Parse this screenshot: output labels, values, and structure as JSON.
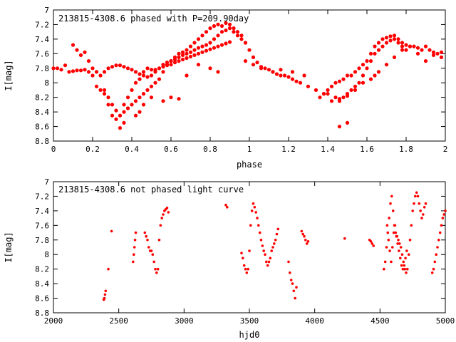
{
  "chart_data": [
    {
      "type": "scatter",
      "title": "213815-4308.6 phased with P=209.90day",
      "xlabel": "phase",
      "ylabel": "I[mag]",
      "xlim": [
        0,
        2
      ],
      "ylim": [
        8.8,
        7
      ],
      "y_inverted": true,
      "xticks": [
        0,
        0.2,
        0.4,
        0.6,
        0.8,
        1,
        1.2,
        1.4,
        1.6,
        1.8,
        2
      ],
      "yticks": [
        7,
        7.2,
        7.4,
        7.6,
        7.8,
        8,
        8.2,
        8.4,
        8.6,
        8.8
      ],
      "marker_color": "#ff0000",
      "grid": false,
      "series": [
        {
          "x": [
            0.0,
            0.02,
            0.04,
            0.06,
            0.08,
            0.1,
            0.12,
            0.14,
            0.16,
            0.18,
            0.2,
            0.22,
            0.24,
            0.26,
            0.28,
            0.3,
            0.32,
            0.34,
            0.36,
            0.38,
            0.4,
            0.42,
            0.44,
            0.46,
            0.48,
            0.5,
            0.52,
            0.54,
            0.56,
            0.58,
            0.6,
            0.62,
            0.64,
            0.66,
            0.68,
            0.7,
            0.72,
            0.74,
            0.76,
            0.78,
            0.8,
            0.82,
            0.84,
            0.86,
            0.88,
            0.9,
            0.92,
            0.94,
            0.96,
            0.98,
            1.0,
            1.02,
            1.04,
            1.06,
            1.08,
            1.1,
            1.12,
            1.14,
            1.16,
            1.18,
            1.2,
            1.22,
            1.24,
            1.26,
            1.3,
            1.34,
            1.38,
            1.4,
            1.42,
            1.44,
            1.46,
            1.48,
            1.5,
            1.52,
            1.54,
            1.56,
            1.58,
            1.6,
            1.62,
            1.64,
            1.66,
            1.68,
            1.7,
            1.72,
            1.74,
            1.76,
            1.78,
            1.8,
            1.82,
            1.84,
            1.86,
            1.88,
            1.9,
            1.92,
            1.94,
            1.96,
            1.98,
            0.1,
            0.12,
            0.14,
            0.16,
            0.18,
            0.2,
            0.22,
            0.24,
            0.26,
            0.28,
            0.3,
            0.32,
            0.34,
            0.36,
            0.38,
            0.4,
            0.42,
            0.44,
            0.46,
            0.48,
            0.5,
            0.52,
            0.54,
            0.56,
            0.58,
            0.6,
            0.62,
            0.64,
            0.66,
            0.68,
            0.7,
            0.72,
            0.74,
            0.76,
            0.78,
            0.8,
            0.82,
            0.84,
            0.86,
            0.88,
            0.9,
            0.92,
            0.94,
            0.96,
            0.98,
            1.4,
            1.44,
            1.46,
            1.48,
            1.5,
            1.52,
            1.54,
            1.56,
            1.58,
            1.6,
            1.62,
            1.64,
            1.66,
            1.68,
            1.7,
            1.72,
            1.74,
            1.76,
            1.78,
            1.8,
            0.28,
            0.3,
            0.32,
            0.34,
            0.36,
            0.38,
            0.4,
            0.42,
            0.44,
            0.46,
            0.48,
            0.5,
            0.52,
            0.54,
            0.56,
            0.58,
            0.6,
            0.62,
            0.64,
            0.66,
            0.68,
            0.7,
            0.72,
            0.74,
            0.76,
            0.78,
            0.8,
            0.82,
            0.84,
            0.86,
            0.88,
            0.9,
            1.36,
            1.38,
            1.42,
            1.46,
            1.5,
            1.54,
            1.58,
            1.62,
            1.66,
            1.7,
            1.74,
            1.78,
            1.82,
            1.86,
            1.9,
            1.94,
            1.98,
            0.26,
            0.34,
            0.36,
            0.38,
            0.42,
            0.44,
            0.46,
            0.5,
            0.56,
            0.6,
            0.64,
            0.68,
            0.74,
            0.8,
            0.84,
            0.92,
            0.98,
            1.02,
            1.06,
            1.12,
            1.16,
            1.22,
            1.28,
            1.46,
            1.5,
            1.64
          ],
          "y": [
            7.8,
            7.8,
            7.82,
            7.76,
            7.85,
            7.84,
            7.83,
            7.83,
            7.82,
            7.85,
            7.9,
            8.05,
            8.1,
            8.15,
            8.2,
            8.3,
            8.38,
            8.45,
            8.4,
            8.35,
            8.3,
            8.25,
            8.2,
            8.15,
            8.1,
            8.05,
            8.0,
            7.95,
            7.85,
            7.75,
            7.7,
            7.65,
            7.6,
            7.58,
            7.55,
            7.5,
            7.45,
            7.4,
            7.35,
            7.3,
            7.25,
            7.22,
            7.2,
            7.22,
            7.18,
            7.2,
            7.25,
            7.3,
            7.35,
            7.45,
            7.55,
            7.65,
            7.72,
            7.78,
            7.8,
            7.82,
            7.85,
            7.88,
            7.9,
            7.9,
            7.92,
            7.95,
            7.98,
            8.0,
            8.05,
            8.1,
            8.15,
            8.1,
            8.05,
            8.0,
            7.98,
            7.95,
            7.9,
            7.9,
            7.85,
            7.8,
            7.75,
            7.7,
            7.6,
            7.5,
            7.45,
            7.4,
            7.38,
            7.36,
            7.35,
            7.4,
            7.45,
            7.48,
            7.5,
            7.5,
            7.52,
            7.55,
            7.5,
            7.55,
            7.58,
            7.6,
            7.65,
            7.48,
            7.55,
            7.62,
            7.58,
            7.7,
            7.8,
            7.85,
            7.9,
            7.85,
            7.8,
            7.78,
            7.76,
            7.76,
            7.78,
            7.8,
            7.82,
            7.85,
            7.88,
            7.9,
            7.92,
            7.9,
            7.85,
            7.8,
            7.75,
            7.72,
            7.7,
            7.68,
            7.65,
            7.62,
            7.6,
            7.58,
            7.55,
            7.52,
            7.5,
            7.48,
            7.45,
            7.4,
            7.35,
            7.3,
            7.28,
            7.25,
            7.3,
            7.35,
            7.4,
            7.45,
            8.15,
            8.2,
            8.25,
            8.2,
            8.15,
            8.1,
            8.05,
            8.0,
            7.9,
            7.8,
            7.7,
            7.6,
            7.55,
            7.5,
            7.45,
            7.42,
            7.4,
            7.45,
            7.5,
            7.55,
            8.3,
            8.45,
            8.5,
            8.45,
            8.3,
            8.2,
            8.1,
            8.0,
            7.95,
            7.85,
            7.8,
            7.82,
            7.82,
            7.8,
            7.78,
            7.76,
            7.75,
            7.72,
            7.7,
            7.68,
            7.66,
            7.64,
            7.62,
            7.6,
            7.58,
            7.56,
            7.54,
            7.52,
            7.5,
            7.48,
            7.46,
            7.44,
            8.2,
            8.15,
            8.25,
            8.22,
            8.18,
            8.1,
            8.0,
            7.95,
            7.85,
            7.75,
            7.65,
            7.55,
            7.5,
            7.6,
            7.7,
            7.62,
            7.58,
            8.1,
            8.62,
            8.55,
            8.35,
            8.45,
            8.4,
            8.3,
            8.2,
            8.25,
            8.2,
            8.22,
            7.9,
            7.75,
            7.8,
            7.85,
            7.3,
            7.7,
            7.75,
            7.8,
            7.85,
            7.82,
            7.85,
            7.9,
            8.6,
            8.55,
            7.9
          ],
          "x_note": ""
        }
      ]
    },
    {
      "type": "scatter",
      "title": "213815-4308.6 not phased light curve",
      "xlabel": "hjd0",
      "ylabel": "I[mag]",
      "xlim": [
        2000,
        5000
      ],
      "ylim": [
        8.8,
        7
      ],
      "y_inverted": true,
      "xticks": [
        2000,
        2500,
        3000,
        3500,
        4000,
        4500,
        5000
      ],
      "yticks": [
        7,
        7.2,
        7.4,
        7.6,
        7.8,
        8,
        8.2,
        8.4,
        8.6,
        8.8
      ],
      "marker_color": "#ff0000",
      "grid": false,
      "series": [
        {
          "x": [
            2385,
            2390,
            2395,
            2400,
            2420,
            2445,
            2610,
            2615,
            2620,
            2625,
            2630,
            2700,
            2710,
            2720,
            2730,
            2740,
            2750,
            2760,
            2770,
            2780,
            2790,
            2800,
            2810,
            2820,
            2830,
            2840,
            2850,
            2860,
            2870,
            2880,
            3320,
            3330,
            3440,
            3450,
            3460,
            3470,
            3480,
            3490,
            3500,
            3510,
            3520,
            3530,
            3540,
            3550,
            3560,
            3570,
            3580,
            3590,
            3600,
            3610,
            3620,
            3630,
            3640,
            3650,
            3660,
            3670,
            3680,
            3690,
            3700,
            3710,
            3720,
            3800,
            3810,
            3820,
            3830,
            3840,
            3850,
            3860,
            3900,
            3910,
            3920,
            3930,
            3940,
            3950,
            4230,
            4420,
            4430,
            4440,
            4450,
            4530,
            4540,
            4550,
            4560,
            4570,
            4580,
            4590,
            4600,
            4610,
            4620,
            4630,
            4640,
            4650,
            4660,
            4670,
            4680,
            4690,
            4700,
            4710,
            4720,
            4730,
            4740,
            4750,
            4760,
            4770,
            4780,
            4790,
            4800,
            4810,
            4820,
            4830,
            4840,
            4850,
            4900,
            4910,
            4920,
            4930,
            4940,
            4950,
            4960,
            4970,
            4980,
            4990,
            5000,
            4555,
            4565,
            4575,
            4585,
            4595,
            4605,
            4615,
            4625,
            4635,
            4645,
            4655,
            4665,
            4675,
            4685,
            4695,
            4705
          ],
          "y": [
            8.62,
            8.6,
            8.55,
            8.5,
            8.2,
            7.68,
            8.1,
            8.0,
            7.9,
            7.8,
            7.7,
            7.7,
            7.75,
            7.8,
            7.9,
            7.95,
            7.95,
            8.0,
            8.1,
            8.2,
            8.25,
            8.2,
            7.8,
            7.6,
            7.5,
            7.45,
            7.4,
            7.38,
            7.36,
            7.42,
            7.32,
            7.35,
            7.98,
            8.05,
            8.15,
            8.2,
            8.25,
            8.2,
            7.95,
            7.6,
            7.4,
            7.3,
            7.35,
            7.42,
            7.5,
            7.6,
            7.7,
            7.8,
            7.88,
            7.95,
            8.0,
            8.1,
            8.15,
            8.1,
            8.05,
            7.95,
            7.9,
            7.85,
            7.8,
            7.72,
            7.65,
            8.1,
            8.25,
            8.35,
            8.4,
            8.5,
            8.6,
            8.45,
            7.68,
            7.72,
            7.75,
            7.8,
            7.85,
            7.82,
            7.78,
            7.8,
            7.82,
            7.85,
            7.88,
            8.2,
            8.1,
            7.9,
            7.7,
            7.5,
            7.3,
            7.2,
            7.4,
            7.6,
            7.7,
            7.75,
            7.8,
            7.85,
            7.9,
            8.0,
            8.1,
            8.2,
            8.25,
            8.2,
            8.0,
            7.8,
            7.6,
            7.4,
            7.3,
            7.2,
            7.15,
            7.2,
            7.3,
            7.4,
            7.5,
            7.45,
            7.35,
            7.3,
            8.25,
            8.2,
            8.1,
            8.0,
            7.9,
            7.8,
            7.7,
            7.6,
            7.5,
            7.45,
            7.4,
            7.6,
            7.8,
            7.95,
            8.1,
            7.9,
            7.7,
            7.6,
            7.75,
            7.85,
            7.95,
            8.05,
            8.15,
            8.2,
            8.15,
            8.05,
            7.95
          ]
        }
      ]
    }
  ]
}
